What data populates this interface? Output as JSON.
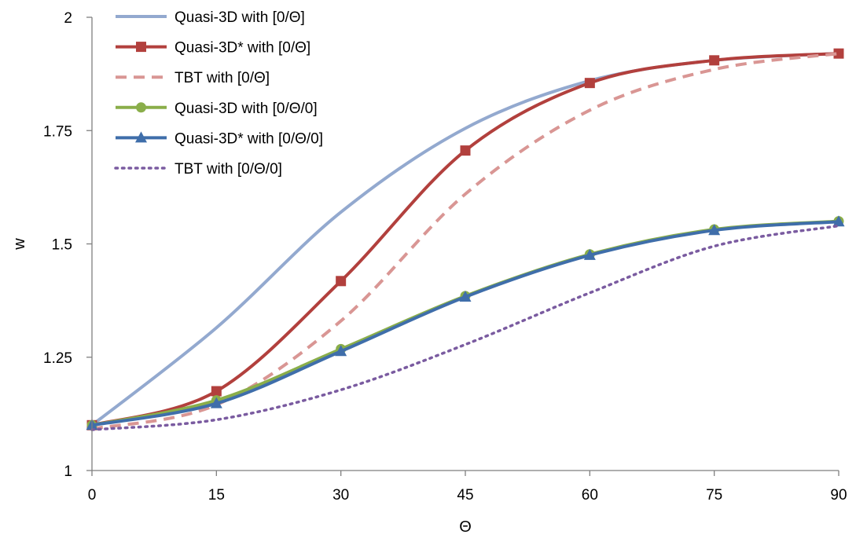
{
  "chart_data": {
    "type": "line",
    "title": "",
    "xlabel": "Θ",
    "ylabel": "w",
    "xlim": [
      0,
      90
    ],
    "ylim": [
      1,
      2
    ],
    "x_ticks": [
      "0",
      "15",
      "30",
      "45",
      "60",
      "75",
      "90"
    ],
    "y_ticks": [
      "1",
      "1.25",
      "1.5",
      "1.75",
      "2"
    ],
    "grid": false,
    "legend_position": "top-left",
    "series": [
      {
        "name": "Quasi-3D with [0/Θ]",
        "color": "#93A9CF",
        "dash": "solid",
        "marker": "none",
        "x": [
          0,
          15,
          30,
          45,
          60,
          75,
          90
        ],
        "y": [
          1.1,
          1.315,
          1.57,
          1.755,
          1.86,
          1.905,
          1.92
        ]
      },
      {
        "name": "Quasi-3D* with [0/Θ]",
        "color": "#B2403D",
        "dash": "solid",
        "marker": "square",
        "x": [
          0,
          15,
          30,
          45,
          60,
          75,
          90
        ],
        "y": [
          1.1,
          1.175,
          1.418,
          1.706,
          1.855,
          1.905,
          1.92
        ]
      },
      {
        "name": "TBT with [0/Θ]",
        "color": "#D99694",
        "dash": "dashed",
        "marker": "none",
        "x": [
          0,
          15,
          30,
          45,
          60,
          75,
          90
        ],
        "y": [
          1.092,
          1.145,
          1.33,
          1.61,
          1.795,
          1.885,
          1.92
        ]
      },
      {
        "name": "Quasi-3D with [0/Θ/0]",
        "color": "#8AAE4A",
        "dash": "solid",
        "marker": "circle",
        "x": [
          0,
          15,
          30,
          45,
          60,
          75,
          90
        ],
        "y": [
          1.1,
          1.155,
          1.268,
          1.385,
          1.477,
          1.532,
          1.55
        ]
      },
      {
        "name": "Quasi-3D* with [0/Θ/0]",
        "color": "#3F6EAA",
        "dash": "solid",
        "marker": "triangle",
        "x": [
          0,
          15,
          30,
          45,
          60,
          75,
          90
        ],
        "y": [
          1.1,
          1.148,
          1.263,
          1.383,
          1.475,
          1.53,
          1.549
        ]
      },
      {
        "name": "TBT with [0/Θ/0]",
        "color": "#7A5BA0",
        "dash": "dotted",
        "marker": "none",
        "x": [
          0,
          15,
          30,
          45,
          60,
          75,
          90
        ],
        "y": [
          1.09,
          1.112,
          1.178,
          1.278,
          1.392,
          1.495,
          1.54
        ]
      }
    ]
  }
}
